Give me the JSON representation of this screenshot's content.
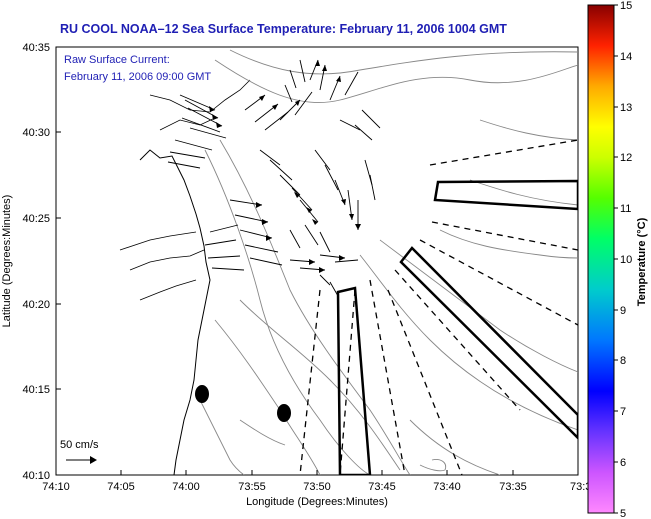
{
  "title": "RU COOL  NOAA–12  Sea Surface Temperature:  February 11, 2006 1004 GMT",
  "current_note": {
    "line1": "Raw Surface Current:",
    "line2": "February 11, 2006 09:00 GMT"
  },
  "scale_label": "50 cm/s",
  "map": {
    "xlabel": "Longitude (Degrees:Minutes)",
    "ylabel": "Latitude (Degrees:Minutes)",
    "x_ticks": [
      "74:10",
      "74:05",
      "74:00",
      "73:55",
      "73:50",
      "73:45",
      "73:40",
      "73:35",
      "73:3"
    ],
    "y_ticks": [
      "40:35",
      "40:30",
      "40:25",
      "40:20",
      "40:15",
      "40:10"
    ]
  },
  "colorbar": {
    "title": "Temperature (°C)",
    "ticks": [
      "15",
      "14",
      "13",
      "12",
      "11",
      "10",
      "9",
      "8",
      "7",
      "6",
      "5"
    ],
    "min": 5,
    "max": 15,
    "colors": [
      "#ff66ff",
      "#9933ff",
      "#0000ff",
      "#0099ff",
      "#00cccc",
      "#00ff66",
      "#66ff00",
      "#ffff00",
      "#ffaa00",
      "#ff3300",
      "#990000"
    ]
  }
}
